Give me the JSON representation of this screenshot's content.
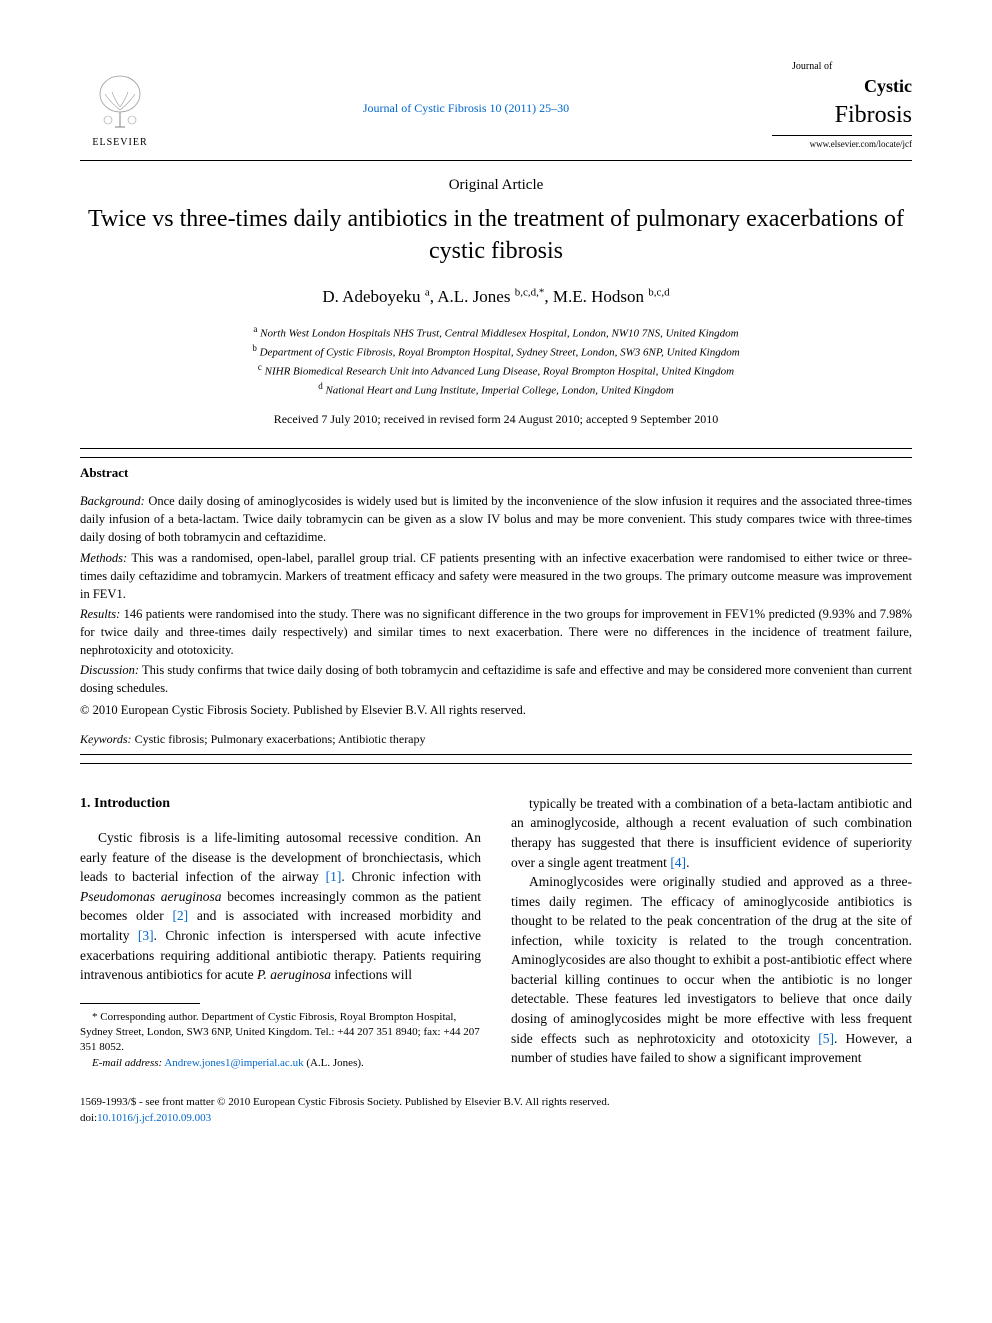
{
  "header": {
    "publisher": "ELSEVIER",
    "citation": "Journal of Cystic Fibrosis 10 (2011) 25–30",
    "journal_small": "Journal of",
    "journal_main": "Cystic",
    "journal_sub": "Fibrosis",
    "journal_url": "www.elsevier.com/locate/jcf"
  },
  "article": {
    "type": "Original Article",
    "title": "Twice vs three-times daily antibiotics in the treatment of pulmonary exacerbations of cystic fibrosis",
    "authors_html": "D. Adeboyeku <sup>a</sup>, A.L. Jones <sup>b,c,d,*</sup>, M.E. Hodson <sup>b,c,d</sup>",
    "affiliations": [
      {
        "sup": "a",
        "text": "North West London Hospitals NHS Trust, Central Middlesex Hospital, London, NW10 7NS, United Kingdom"
      },
      {
        "sup": "b",
        "text": "Department of Cystic Fibrosis, Royal Brompton Hospital, Sydney Street, London, SW3 6NP, United Kingdom"
      },
      {
        "sup": "c",
        "text": "NIHR Biomedical Research Unit into Advanced Lung Disease, Royal Brompton Hospital, United Kingdom"
      },
      {
        "sup": "d",
        "text": "National Heart and Lung Institute, Imperial College, London, United Kingdom"
      }
    ],
    "dates": "Received 7 July 2010; received in revised form 24 August 2010; accepted 9 September 2010"
  },
  "abstract": {
    "heading": "Abstract",
    "sections": [
      {
        "label": "Background:",
        "text": "Once daily dosing of aminoglycosides is widely used but is limited by the inconvenience of the slow infusion it requires and the associated three-times daily infusion of a beta-lactam. Twice daily tobramycin can be given as a slow IV bolus and may be more convenient. This study compares twice with three-times daily dosing of both tobramycin and ceftazidime."
      },
      {
        "label": "Methods:",
        "text": "This was a randomised, open-label, parallel group trial. CF patients presenting with an infective exacerbation were randomised to either twice or three-times daily ceftazidime and tobramycin. Markers of treatment efficacy and safety were measured in the two groups. The primary outcome measure was improvement in FEV1."
      },
      {
        "label": "Results:",
        "text": "146 patients were randomised into the study. There was no significant difference in the two groups for improvement in FEV1% predicted (9.93% and 7.98% for twice daily and three-times daily respectively) and similar times to next exacerbation. There were no differences in the incidence of treatment failure, nephrotoxicity and ototoxicity."
      },
      {
        "label": "Discussion:",
        "text": "This study confirms that twice daily dosing of both tobramycin and ceftazidime is safe and effective and may be considered more convenient than current dosing schedules."
      }
    ],
    "copyright": "© 2010 European Cystic Fibrosis Society. Published by Elsevier B.V. All rights reserved.",
    "keywords_label": "Keywords:",
    "keywords": "Cystic fibrosis; Pulmonary exacerbations; Antibiotic therapy"
  },
  "body": {
    "section_heading": "1. Introduction",
    "left_para": "Cystic fibrosis is a life-limiting autosomal recessive condition. An early feature of the disease is the development of bronchiectasis, which leads to bacterial infection of the airway [1]. Chronic infection with Pseudomonas aeruginosa becomes increasingly common as the patient becomes older [2] and is associated with increased morbidity and mortality [3]. Chronic infection is interspersed with acute infective exacerbations requiring additional antibiotic therapy. Patients requiring intravenous antibiotics for acute P. aeruginosa infections will",
    "right_para_1": "typically be treated with a combination of a beta-lactam antibiotic and an aminoglycoside, although a recent evaluation of such combination therapy has suggested that there is insufficient evidence of superiority over a single agent treatment [4].",
    "right_para_2": "Aminoglycosides were originally studied and approved as a three-times daily regimen. The efficacy of aminoglycoside antibiotics is thought to be related to the peak concentration of the drug at the site of infection, while toxicity is related to the trough concentration. Aminoglycosides are also thought to exhibit a post-antibiotic effect where bacterial killing continues to occur when the antibiotic is no longer detectable. These features led investigators to believe that once daily dosing of aminoglycosides might be more effective with less frequent side effects such as nephrotoxicity and ototoxicity [5]. However, a number of studies have failed to show a significant improvement",
    "ref_links": [
      "[1]",
      "[2]",
      "[3]",
      "[4]",
      "[5]"
    ]
  },
  "footnotes": {
    "corresponding": "* Corresponding author. Department of Cystic Fibrosis, Royal Brompton Hospital, Sydney Street, London, SW3 6NP, United Kingdom. Tel.: +44 207 351 8940; fax: +44 207 351 8052.",
    "email_label": "E-mail address:",
    "email": "Andrew.jones1@imperial.ac.uk",
    "email_author": "(A.L. Jones)."
  },
  "bottom": {
    "issn_line": "1569-1993/$ - see front matter © 2010 European Cystic Fibrosis Society. Published by Elsevier B.V. All rights reserved.",
    "doi_label": "doi:",
    "doi": "10.1016/j.jcf.2010.09.003"
  },
  "colors": {
    "link": "#0066cc",
    "text": "#000000",
    "background": "#ffffff"
  }
}
